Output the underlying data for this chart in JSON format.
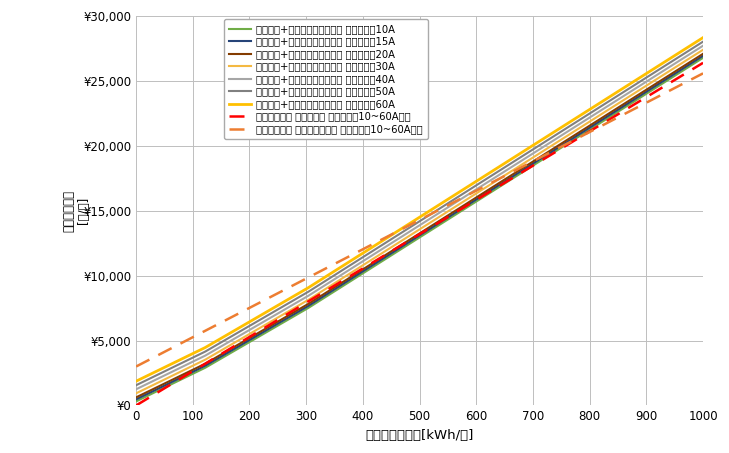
{
  "xlabel": "月間電力使用量[kWh/月]",
  "ylabel_lines": [
    "月",
    "間",
    "電",
    "気",
    "料",
    "金",
    "[",
    "円",
    "/",
    "月",
    "]"
  ],
  "xlim": [
    0,
    1000
  ],
  "ylim": [
    0,
    30000
  ],
  "xticks": [
    0,
    100,
    200,
    300,
    400,
    500,
    600,
    700,
    800,
    900,
    1000
  ],
  "yticks": [
    0,
    5000,
    10000,
    15000,
    20000,
    25000,
    30000
  ],
  "background_color": "#ffffff",
  "grid_color": "#bfbfbf",
  "series": [
    {
      "label": "よりそう+ファミリーバリュー 契約容量：10A",
      "color": "#70ad47",
      "lw": 1.5,
      "base_fee": 311.75,
      "rate1": 21.2,
      "rate2": 25.3,
      "rate3": 27.68
    },
    {
      "label": "よりそう+ファミリーバリュー 契約容量：15A",
      "color": "#264478",
      "lw": 1.5,
      "base_fee": 467.63,
      "rate1": 21.2,
      "rate2": 25.3,
      "rate3": 27.68
    },
    {
      "label": "よりそう+ファミリーバリュー 契約容量：20A",
      "color": "#843c00",
      "lw": 1.5,
      "base_fee": 623.5,
      "rate1": 21.2,
      "rate2": 25.3,
      "rate3": 27.68
    },
    {
      "label": "よりそう+ファミリーバリュー 契約容量：30A",
      "color": "#f4b942",
      "lw": 1.5,
      "base_fee": 935.25,
      "rate1": 21.2,
      "rate2": 25.3,
      "rate3": 27.68
    },
    {
      "label": "よりそう+ファミリーバリュー 契約容量：40A",
      "color": "#a6a6a6",
      "lw": 1.5,
      "base_fee": 1247.0,
      "rate1": 21.2,
      "rate2": 25.3,
      "rate3": 27.68
    },
    {
      "label": "よりそう+ファミリーバリュー 契約容量：50A",
      "color": "#808080",
      "lw": 1.5,
      "base_fee": 1558.75,
      "rate1": 21.2,
      "rate2": 25.3,
      "rate3": 27.68
    },
    {
      "label": "よりそう+ファミリーバリュー 契約容量：60A",
      "color": "#ffc000",
      "lw": 2.0,
      "base_fee": 1870.5,
      "rate1": 21.2,
      "rate2": 25.3,
      "rate3": 27.68
    }
  ],
  "ashita_standard": {
    "label": "あしたでんき 標準プラン 契約容量：10~60A共通",
    "color": "#ff0000",
    "lw": 1.8,
    "base_fee": 0,
    "rate": 26.4
  },
  "ashita_tappuri": {
    "label": "あしたでんき たっぷりぷらん 契約容量：10~60A共通",
    "color": "#ed7d31",
    "lw": 1.8,
    "base_fee": 3000,
    "rate": 22.59
  }
}
